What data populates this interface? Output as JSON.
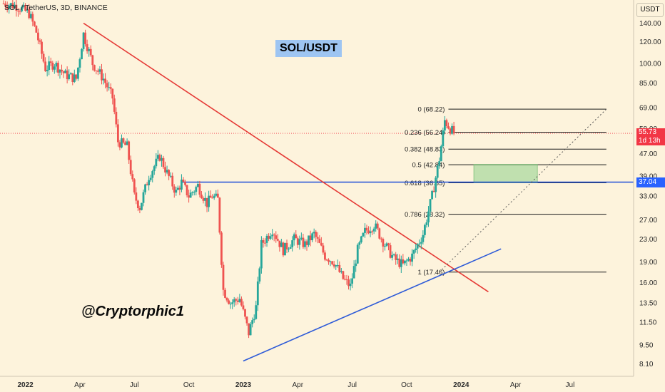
{
  "header": {
    "symbol_line": "SOL / TetherUS, 3D, BINANCE"
  },
  "badge": {
    "label": "SOL/USDT"
  },
  "watermark": {
    "label": "@Cryptorphic1"
  },
  "currency_button": {
    "label": "USDT"
  },
  "price_tags": {
    "current": {
      "value": "55.73",
      "countdown": "1d 13h",
      "color": "#f23645"
    },
    "level": {
      "value": "37.04",
      "color": "#2962ff"
    }
  },
  "colors": {
    "up": "#26a69a",
    "down": "#ef5350",
    "background": "#fdf3dc",
    "downtrend_line": "#e53935",
    "uptrend_line": "#2e5bd8",
    "resistance_line": "#2e5bd8",
    "target_box": "#8ed08a"
  },
  "chart_data": {
    "type": "candlestick",
    "scale": "log",
    "ylim": [
      7.3,
      170
    ],
    "y_ticks": [
      "140.00",
      "120.00",
      "100.00",
      "85.00",
      "69.00",
      "58.00",
      "47.00",
      "39.00",
      "33.00",
      "27.00",
      "23.00",
      "19.00",
      "16.00",
      "13.50",
      "11.50",
      "9.50",
      "8.10"
    ],
    "x_ticks": [
      "2022",
      "Apr",
      "Jul",
      "Oct",
      "2023",
      "Apr",
      "Jul",
      "Oct",
      "2024",
      "Apr",
      "Jul"
    ],
    "x_tick_months": [
      0,
      3,
      6,
      9,
      12,
      15,
      18,
      21,
      24,
      27,
      30
    ],
    "xlim_months": [
      -1.4,
      33.5
    ],
    "current_price": 55.73,
    "fib_levels": [
      {
        "label": "0 (68.22)",
        "price": 68.22
      },
      {
        "label": "0.236 (56.24)",
        "price": 56.24
      },
      {
        "label": "0.382 (48.83)",
        "price": 48.83
      },
      {
        "label": "0.5 (42.84)",
        "price": 42.84
      },
      {
        "label": "0.618 (36.85)",
        "price": 36.85
      },
      {
        "label": "0.786 (28.32)",
        "price": 28.32
      },
      {
        "label": "1 (17.46)",
        "price": 17.46
      }
    ],
    "fib_range_months": [
      23.3,
      32.0
    ],
    "resistance": {
      "price": 37.04,
      "from_month": 8.6
    },
    "downtrend_line": [
      [
        3.2,
        140
      ],
      [
        25.5,
        14.8
      ]
    ],
    "uptrend_line": [
      [
        12.0,
        8.3
      ],
      [
        26.2,
        21.2
      ]
    ],
    "projection_line": [
      [
        22.8,
        17.46
      ],
      [
        32.0,
        68.22
      ]
    ],
    "target_box": {
      "months": [
        24.7,
        28.2
      ],
      "price": [
        36.85,
        43.0
      ]
    },
    "anchors": [
      [
        -1.2,
        165
      ],
      [
        -0.5,
        162
      ],
      [
        0.2,
        152
      ],
      [
        0.6,
        130
      ],
      [
        1.1,
        96
      ],
      [
        1.6,
        100
      ],
      [
        2.2,
        91
      ],
      [
        2.8,
        88
      ],
      [
        3.2,
        128
      ],
      [
        3.7,
        100
      ],
      [
        4.3,
        88
      ],
      [
        4.8,
        75
      ],
      [
        5.1,
        52
      ],
      [
        5.6,
        50
      ],
      [
        6.0,
        33
      ],
      [
        6.3,
        30
      ],
      [
        6.8,
        39
      ],
      [
        7.4,
        46
      ],
      [
        7.8,
        40
      ],
      [
        8.3,
        34
      ],
      [
        8.6,
        37
      ],
      [
        9.0,
        33
      ],
      [
        9.5,
        36
      ],
      [
        10.0,
        31
      ],
      [
        10.3,
        33
      ],
      [
        10.6,
        32
      ],
      [
        10.9,
        15
      ],
      [
        11.3,
        13.5
      ],
      [
        11.8,
        14
      ],
      [
        12.3,
        10.5
      ],
      [
        12.7,
        13
      ],
      [
        13.0,
        22
      ],
      [
        13.6,
        25
      ],
      [
        14.2,
        21
      ],
      [
        14.8,
        23
      ],
      [
        15.4,
        22
      ],
      [
        15.9,
        24
      ],
      [
        16.5,
        20
      ],
      [
        17.0,
        19
      ],
      [
        17.5,
        16.5
      ],
      [
        17.9,
        15.5
      ],
      [
        18.3,
        21
      ],
      [
        18.7,
        24.5
      ],
      [
        19.2,
        26
      ],
      [
        19.8,
        22
      ],
      [
        20.3,
        19.5
      ],
      [
        20.8,
        18.5
      ],
      [
        21.3,
        20
      ],
      [
        21.9,
        24
      ],
      [
        22.4,
        33
      ],
      [
        22.8,
        45
      ],
      [
        23.1,
        62
      ],
      [
        23.4,
        58
      ],
      [
        23.6,
        55.73
      ]
    ]
  }
}
